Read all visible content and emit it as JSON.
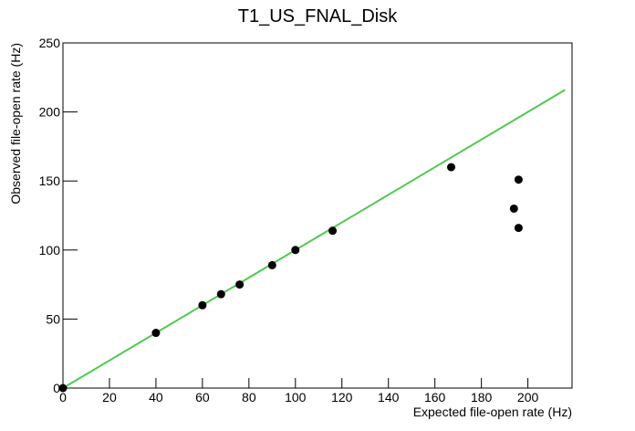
{
  "chart_data": {
    "type": "scatter",
    "title": "T1_US_FNAL_Disk",
    "x_label": "Expected file-open rate (Hz)",
    "y_label": "Observed file-open rate (Hz)",
    "series": [
      {
        "x": [
          0,
          40,
          60,
          68,
          76,
          90,
          100,
          116,
          167,
          194,
          196,
          196
        ],
        "values": [
          0,
          40,
          60,
          68,
          75,
          89,
          100,
          114,
          160,
          130,
          151,
          116
        ],
        "color": "#000000"
      }
    ],
    "fit_line": {
      "x": [
        0,
        216
      ],
      "y": [
        0,
        216
      ],
      "color": "#4fc94f"
    },
    "xlim": [
      0,
      219
    ],
    "ylim": [
      0,
      250
    ],
    "xticks": [
      0,
      20,
      40,
      60,
      80,
      100,
      120,
      140,
      160,
      180,
      200
    ],
    "yticks": [
      0,
      50,
      100,
      150,
      200,
      250
    ],
    "grid": false
  }
}
